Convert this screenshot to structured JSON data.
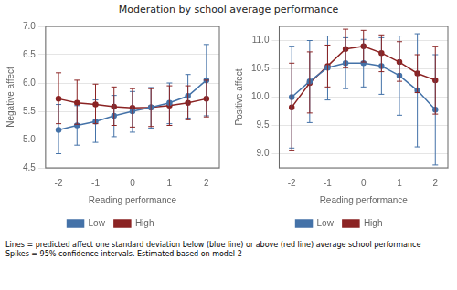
{
  "title": "Moderation by school average performance",
  "annotations": [
    "Lines = predicted affect one standard deviation below (blue line) or above (red line) average school performance",
    "Spikes = 95% confidence intervals. Estimated based on model 2"
  ],
  "chart_data": [
    {
      "type": "line",
      "xlabel": "Reading performance",
      "ylabel": "Negative affect",
      "x": [
        -2,
        -1.5,
        -1,
        -0.5,
        0,
        0.5,
        1,
        1.5,
        2
      ],
      "series": [
        {
          "name": "Low",
          "color": "#4472A8",
          "marker": "circle",
          "values": [
            5.17,
            5.25,
            5.32,
            5.42,
            5.5,
            5.57,
            5.65,
            5.77,
            6.05
          ],
          "lower": [
            4.75,
            4.9,
            4.95,
            5.05,
            5.13,
            5.2,
            5.28,
            5.38,
            5.42
          ],
          "upper": [
            5.62,
            5.6,
            5.7,
            5.78,
            5.85,
            5.92,
            6.0,
            6.15,
            6.68
          ]
        },
        {
          "name": "High",
          "color": "#8B2323",
          "marker": "circle",
          "values": [
            5.72,
            5.65,
            5.62,
            5.58,
            5.56,
            5.57,
            5.6,
            5.65,
            5.72
          ],
          "lower": [
            5.28,
            5.27,
            5.28,
            5.25,
            5.22,
            5.23,
            5.25,
            5.35,
            5.4
          ],
          "upper": [
            6.18,
            6.05,
            5.98,
            5.93,
            5.9,
            5.9,
            5.95,
            5.95,
            6.05
          ]
        }
      ],
      "xlim": [
        -2.35,
        2.35
      ],
      "xticks": [
        -2,
        -1,
        0,
        1,
        2
      ],
      "ylim": [
        4.5,
        7.0
      ],
      "yticks": [
        4.5,
        {
          "value": 5.0,
          "label": "5.0"
        },
        5.5,
        {
          "value": 6.0,
          "label": "6.0"
        },
        6.5,
        {
          "value": 7.0,
          "label": "7.0"
        }
      ],
      "grid": "y",
      "legend": "bottom"
    },
    {
      "type": "line",
      "xlabel": "Reading performance",
      "ylabel": "Positive affect",
      "x": [
        -2,
        -1.5,
        -1,
        -0.5,
        0,
        0.5,
        1,
        1.5,
        2
      ],
      "series": [
        {
          "name": "Low",
          "color": "#4472A8",
          "marker": "circle",
          "values": [
            10.0,
            10.28,
            10.52,
            10.6,
            10.6,
            10.55,
            10.38,
            10.12,
            9.78
          ],
          "lower": [
            9.1,
            9.55,
            9.95,
            10.15,
            10.18,
            10.05,
            9.68,
            9.12,
            8.8
          ],
          "upper": [
            10.9,
            11.0,
            11.08,
            11.05,
            11.02,
            11.05,
            11.08,
            11.12,
            10.75
          ]
        },
        {
          "name": "High",
          "color": "#8B2323",
          "marker": "circle",
          "values": [
            9.82,
            10.25,
            10.55,
            10.85,
            10.9,
            10.78,
            10.62,
            10.42,
            10.3
          ],
          "lower": [
            9.05,
            9.72,
            10.18,
            10.52,
            10.62,
            10.45,
            10.28,
            10.08,
            9.7
          ],
          "upper": [
            10.6,
            10.8,
            10.92,
            11.2,
            11.18,
            11.1,
            10.98,
            10.75,
            10.9
          ]
        }
      ],
      "xlim": [
        -2.35,
        2.35
      ],
      "xticks": [
        -2,
        -1,
        0,
        1,
        2
      ],
      "ylim": [
        8.75,
        11.25
      ],
      "yticks": [
        {
          "value": 9.0,
          "label": "9.0"
        },
        9.5,
        {
          "value": 10.0,
          "label": "10.0"
        },
        10.5,
        {
          "value": 11.0,
          "label": "11.0"
        }
      ],
      "grid": "y",
      "legend": "bottom"
    }
  ]
}
